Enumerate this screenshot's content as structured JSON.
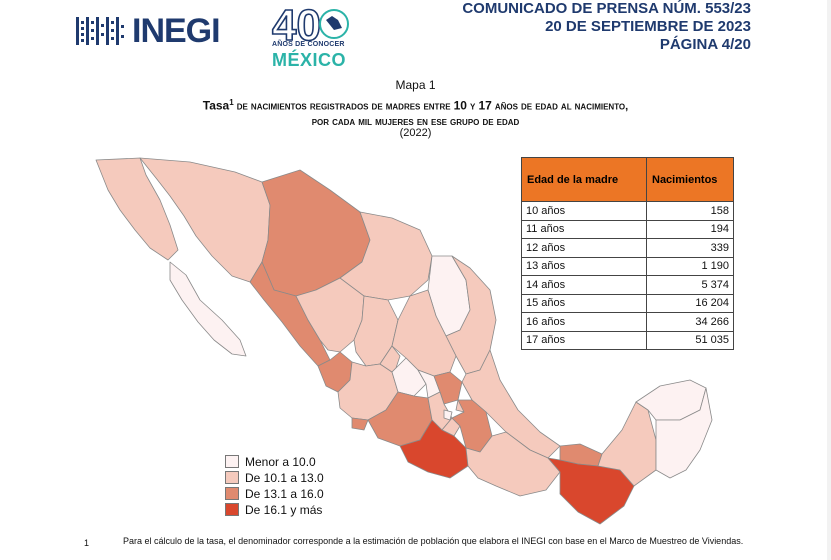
{
  "header": {
    "logo_text": "INEGI",
    "anniversary_number": "40",
    "anniversary_line": "AÑOS DE CONOCER",
    "anniversary_country": "MÉXICO",
    "press_lines": [
      "COMUNICADO DE PRENSA NÚM. 553/23",
      "20 DE SEPTIEMBRE DE 2023",
      "PÁGINA 4/20"
    ]
  },
  "map": {
    "label": "Mapa 1",
    "title_line1_a": "Tasa",
    "title_sup": "1",
    "title_line1_b": " de nacimientos registrados de madres entre ",
    "title_num1": "10",
    "title_y": " y ",
    "title_num2": "17",
    "title_line1_c": " años de edad al nacimiento,",
    "title_line2": "por cada mil mujeres en ese grupo de edad",
    "year": "(2022)"
  },
  "table": {
    "headers": [
      "Edad de la madre",
      "Nacimientos"
    ],
    "rows": [
      [
        "10 años",
        "158"
      ],
      [
        "11 años",
        "194"
      ],
      [
        "12 años",
        "339"
      ],
      [
        "13 años",
        "1 190"
      ],
      [
        "14 años",
        "5 374"
      ],
      [
        "15 años",
        "16 204"
      ],
      [
        "16 años",
        "34 266"
      ],
      [
        "17 años",
        "51 035"
      ]
    ],
    "header_color": "#ec7625"
  },
  "legend": [
    {
      "label": "Menor a 10.0",
      "color": "#fdf2f2"
    },
    {
      "label": "De 10.1 a 13.0",
      "color": "#f5cabd"
    },
    {
      "label": "De 13.1 a 16.0",
      "color": "#e08a6f"
    },
    {
      "label": "De 16.1 y más",
      "color": "#d9472d"
    }
  ],
  "footnote": {
    "number": "1",
    "text": "Para el cálculo de la tasa, el denominador corresponde a la estimación de población que elabora el INEGI con base en el Marco de Muestreo de Viviendas."
  }
}
